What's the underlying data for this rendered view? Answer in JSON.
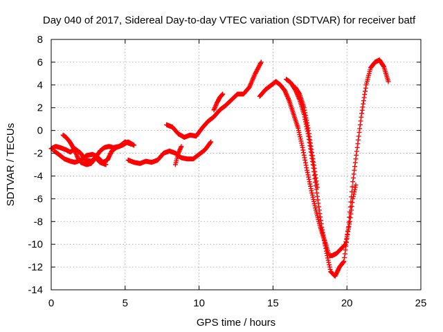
{
  "chart_data": {
    "type": "scatter",
    "title": "Day 040 of 2017, Sidereal Day-to-day VTEC variation (SDTVAR) for receiver batf",
    "xlabel": "GPS time / hours",
    "ylabel": "SDTVAR / TECUs",
    "xlim": [
      0,
      25
    ],
    "ylim": [
      -14,
      8
    ],
    "x_ticks": [
      0,
      5,
      10,
      15,
      20,
      25
    ],
    "y_ticks": [
      -14,
      -12,
      -10,
      -8,
      -6,
      -4,
      -2,
      0,
      2,
      4,
      6,
      8
    ],
    "grid": true,
    "legend": "none",
    "marker": "+",
    "series_color": "#ff0000",
    "series": [
      {
        "x": [
          0.0,
          0.3,
          0.6,
          1.0,
          1.3,
          1.6,
          2.0,
          2.3,
          2.7,
          3.0,
          3.3,
          3.7
        ],
        "y": [
          -1.6,
          -1.4,
          -1.5,
          -1.7,
          -1.9,
          -1.6,
          -2.0,
          -2.6,
          -2.7,
          -2.4,
          -2.8,
          -3.0
        ]
      },
      {
        "x": [
          0.2,
          0.6,
          0.9,
          1.3,
          1.6,
          2.0,
          2.4,
          2.8,
          3.1,
          3.5,
          3.8,
          4.1,
          4.4,
          4.8,
          5.2,
          5.6
        ],
        "y": [
          -1.8,
          -2.2,
          -2.5,
          -2.7,
          -2.8,
          -2.6,
          -2.2,
          -2.1,
          -2.3,
          -2.8,
          -2.6,
          -1.8,
          -1.5,
          -1.3,
          -1.0,
          -1.3
        ]
      },
      {
        "x": [
          0.8,
          1.0,
          1.2,
          1.4,
          1.6,
          1.8,
          2.0,
          2.2,
          2.4,
          2.7,
          3.0,
          3.3,
          3.6,
          3.9,
          4.2,
          4.6,
          5.0,
          5.4
        ],
        "y": [
          -0.4,
          -0.6,
          -0.9,
          -1.3,
          -1.8,
          -2.4,
          -2.8,
          -2.9,
          -3.0,
          -2.9,
          -2.4,
          -1.8,
          -1.5,
          -1.4,
          -1.5,
          -1.4,
          -1.0,
          -1.2
        ]
      },
      {
        "x": [
          5.2,
          5.6,
          6.0,
          6.4,
          6.8,
          7.2,
          7.6,
          8.0,
          8.4,
          8.8,
          9.2,
          9.6,
          10.0,
          10.4,
          10.8
        ],
        "y": [
          -2.6,
          -2.8,
          -2.9,
          -2.7,
          -2.8,
          -2.6,
          -2.0,
          -1.8,
          -2.0,
          -2.4,
          -2.5,
          -2.5,
          -2.1,
          -1.7,
          -1.0
        ]
      },
      {
        "x": [
          7.8,
          8.2,
          8.6,
          9.0,
          9.4,
          9.8,
          10.2,
          10.6,
          11.0,
          11.4,
          11.8,
          12.2,
          12.6,
          13.0,
          13.4,
          13.8,
          14.2
        ],
        "y": [
          0.5,
          0.3,
          -0.3,
          -0.6,
          -0.4,
          -0.5,
          0.2,
          0.8,
          1.2,
          1.8,
          2.2,
          2.7,
          3.2,
          3.2,
          3.8,
          5.0,
          6.0
        ]
      },
      {
        "x": [
          11.0,
          11.2,
          11.4,
          11.6
        ],
        "y": [
          1.8,
          2.4,
          2.9,
          3.2
        ]
      },
      {
        "x": [
          8.4,
          8.6,
          8.8
        ],
        "y": [
          -3.0,
          -2.0,
          -1.4
        ]
      },
      {
        "x": [
          14.1,
          14.5,
          14.9,
          15.2,
          15.5,
          15.8,
          16.1,
          16.4,
          16.7,
          17.0,
          17.3,
          17.6,
          17.9,
          18.2,
          18.5,
          18.8,
          19.0,
          19.3,
          19.6,
          19.9,
          20.2,
          20.4,
          20.6
        ],
        "y": [
          3.0,
          3.6,
          4.0,
          4.3,
          4.0,
          3.5,
          2.6,
          1.4,
          0.2,
          -1.5,
          -3.5,
          -5.3,
          -7.0,
          -8.5,
          -9.7,
          -11.0,
          -11.0,
          -10.8,
          -10.4,
          -10.0,
          -8.0,
          -6.0,
          -4.8
        ]
      },
      {
        "x": [
          15.9,
          16.2,
          16.5,
          16.8,
          17.1,
          17.4,
          17.7,
          18.0,
          18.3,
          18.6,
          18.9,
          19.2,
          19.5,
          19.8,
          20.1,
          20.4,
          20.7,
          21.0,
          21.3,
          21.6,
          21.9,
          22.2,
          22.5,
          22.8
        ],
        "y": [
          4.5,
          4.2,
          3.6,
          2.7,
          1.4,
          -0.5,
          -3.0,
          -5.8,
          -8.5,
          -10.6,
          -12.4,
          -12.8,
          -12.0,
          -11.5,
          -8.5,
          -4.5,
          -1.5,
          1.5,
          4.0,
          5.5,
          6.0,
          6.2,
          5.6,
          4.3
        ]
      },
      {
        "x": [
          16.5,
          16.8,
          17.1,
          17.4,
          17.7,
          18.0
        ],
        "y": [
          3.8,
          3.2,
          2.0,
          0.0,
          -2.5,
          -5.0
        ]
      }
    ]
  }
}
